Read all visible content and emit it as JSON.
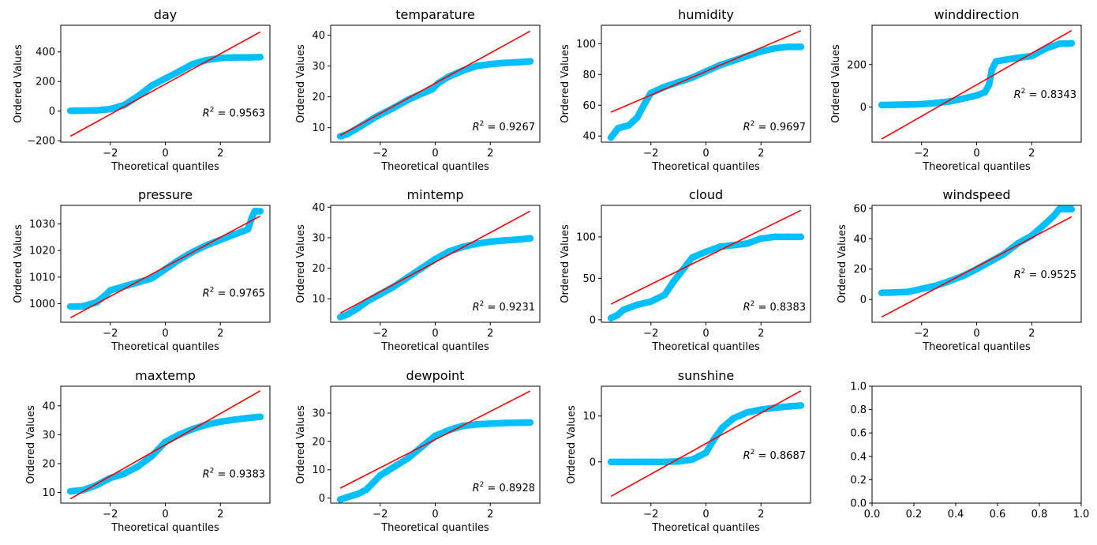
{
  "style": {
    "point_color": "#00bfff",
    "line_color": "#ff0000"
  },
  "chart_data": [
    {
      "type": "scatter",
      "title": "day",
      "xlabel": "Theoretical quantiles",
      "ylabel": "Ordered Values",
      "xlim": [
        -3.8,
        3.8
      ],
      "ylim": [
        -210,
        580
      ],
      "xticks": [
        -2,
        0,
        2
      ],
      "yticks": [
        -200,
        0,
        200,
        400
      ],
      "points": [
        [
          -3.45,
          2
        ],
        [
          -3,
          3
        ],
        [
          -2.5,
          5
        ],
        [
          -2,
          14
        ],
        [
          -1.5,
          40
        ],
        [
          -1,
          100
        ],
        [
          -0.5,
          172
        ],
        [
          0,
          220
        ],
        [
          0.5,
          268
        ],
        [
          1,
          318
        ],
        [
          1.5,
          345
        ],
        [
          2,
          358
        ],
        [
          2.5,
          363
        ],
        [
          3,
          363
        ],
        [
          3.45,
          365
        ]
      ],
      "fit_line": [
        [
          -3.45,
          -170
        ],
        [
          3.45,
          535
        ]
      ],
      "annotation": "0.9563"
    },
    {
      "type": "scatter",
      "title": "temparature",
      "xlabel": "Theoretical quantiles",
      "ylabel": "Ordered Values",
      "xlim": [
        -3.8,
        3.8
      ],
      "ylim": [
        5.3,
        43.2
      ],
      "xticks": [
        -2,
        0,
        2
      ],
      "yticks": [
        10,
        20,
        30,
        40
      ],
      "points": [
        [
          -3.45,
          7.2
        ],
        [
          -3.2,
          7.9
        ],
        [
          -2.7,
          10.5
        ],
        [
          -2.2,
          13.3
        ],
        [
          -1.5,
          16.5
        ],
        [
          -1,
          19
        ],
        [
          -0.5,
          21
        ],
        [
          -0.1,
          22.5
        ],
        [
          0.1,
          24.4
        ],
        [
          0.5,
          26.6
        ],
        [
          1,
          28.5
        ],
        [
          1.5,
          30
        ],
        [
          2,
          30.6
        ],
        [
          2.5,
          31
        ],
        [
          3,
          31.2
        ],
        [
          3.45,
          31.5
        ]
      ],
      "fit_line": [
        [
          -3.45,
          7.5
        ],
        [
          3.45,
          41.3
        ]
      ],
      "annotation": "0.9267"
    },
    {
      "type": "scatter",
      "title": "humidity",
      "xlabel": "Theoretical quantiles",
      "ylabel": "Ordered Values",
      "xlim": [
        -3.8,
        3.8
      ],
      "ylim": [
        36,
        112
      ],
      "xticks": [
        -2,
        0,
        2
      ],
      "yticks": [
        40,
        60,
        80,
        100
      ],
      "points": [
        [
          -3.45,
          39
        ],
        [
          -3.2,
          45
        ],
        [
          -2.8,
          47
        ],
        [
          -2.5,
          52
        ],
        [
          -2.2,
          62
        ],
        [
          -2,
          68
        ],
        [
          -1.5,
          72
        ],
        [
          -1,
          75
        ],
        [
          -0.5,
          78
        ],
        [
          0,
          82
        ],
        [
          0.5,
          86
        ],
        [
          1,
          89
        ],
        [
          1.5,
          92
        ],
        [
          2,
          95
        ],
        [
          2.5,
          97
        ],
        [
          3,
          98
        ],
        [
          3.45,
          98
        ]
      ],
      "fit_line": [
        [
          -3.45,
          55.5
        ],
        [
          3.45,
          108.5
        ]
      ],
      "annotation": "0.9697"
    },
    {
      "type": "scatter",
      "title": "winddirection",
      "xlabel": "Theoretical quantiles",
      "ylabel": "Ordered Values",
      "xlim": [
        -3.8,
        3.8
      ],
      "ylim": [
        -165,
        385
      ],
      "xticks": [
        -2,
        0,
        2
      ],
      "yticks": [
        0,
        200
      ],
      "points": [
        [
          -3.45,
          10
        ],
        [
          -3,
          11
        ],
        [
          -2.5,
          12
        ],
        [
          -2,
          14
        ],
        [
          -1.5,
          19
        ],
        [
          -1,
          26
        ],
        [
          -0.5,
          40
        ],
        [
          0,
          55
        ],
        [
          0.3,
          70
        ],
        [
          0.45,
          105
        ],
        [
          0.55,
          175
        ],
        [
          0.7,
          215
        ],
        [
          1,
          222
        ],
        [
          1.5,
          232
        ],
        [
          2,
          240
        ],
        [
          2.5,
          275
        ],
        [
          3,
          298
        ],
        [
          3.45,
          300
        ]
      ],
      "fit_line": [
        [
          -3.45,
          -150
        ],
        [
          3.45,
          360
        ]
      ],
      "annotation": "0.8343"
    },
    {
      "type": "scatter",
      "title": "pressure",
      "xlabel": "Theoretical quantiles",
      "ylabel": "Ordered Values",
      "xlim": [
        -3.8,
        3.8
      ],
      "ylim": [
        993,
        1037
      ],
      "xticks": [
        -2,
        0,
        2
      ],
      "yticks": [
        1000,
        1010,
        1020,
        1030
      ],
      "points": [
        [
          -3.45,
          998.9
        ],
        [
          -3,
          999
        ],
        [
          -2.5,
          1000.5
        ],
        [
          -2.2,
          1003
        ],
        [
          -2,
          1005
        ],
        [
          -1.5,
          1006.5
        ],
        [
          -1,
          1008
        ],
        [
          -0.5,
          1009.5
        ],
        [
          0,
          1013
        ],
        [
          0.5,
          1016.5
        ],
        [
          1,
          1019.5
        ],
        [
          1.5,
          1022
        ],
        [
          2,
          1024
        ],
        [
          2.5,
          1026
        ],
        [
          3,
          1028
        ],
        [
          3.15,
          1032.5
        ],
        [
          3.25,
          1034.8
        ],
        [
          3.45,
          1034.8
        ]
      ],
      "fit_line": [
        [
          -3.45,
          994.7
        ],
        [
          3.45,
          1033
        ]
      ],
      "annotation": "0.9765"
    },
    {
      "type": "scatter",
      "title": "mintemp",
      "xlabel": "Theoretical quantiles",
      "ylabel": "Ordered Values",
      "xlim": [
        -3.8,
        3.8
      ],
      "ylim": [
        2.3,
        40.6
      ],
      "xticks": [
        -2,
        0,
        2
      ],
      "yticks": [
        10,
        20,
        30,
        40
      ],
      "points": [
        [
          -3.45,
          4
        ],
        [
          -3.2,
          4.8
        ],
        [
          -2.8,
          7
        ],
        [
          -2.5,
          9
        ],
        [
          -2,
          11.5
        ],
        [
          -1.5,
          14
        ],
        [
          -1,
          17
        ],
        [
          -0.5,
          20
        ],
        [
          0,
          23
        ],
        [
          0.5,
          25.5
        ],
        [
          1,
          27
        ],
        [
          1.5,
          28
        ],
        [
          2,
          28.7
        ],
        [
          2.5,
          29.1
        ],
        [
          3,
          29.4
        ],
        [
          3.45,
          29.8
        ]
      ],
      "fit_line": [
        [
          -3.45,
          5.3
        ],
        [
          3.45,
          38.7
        ]
      ],
      "annotation": "0.9231"
    },
    {
      "type": "scatter",
      "title": "cloud",
      "xlabel": "Theoretical quantiles",
      "ylabel": "Ordered Values",
      "xlim": [
        -3.8,
        3.8
      ],
      "ylim": [
        -3,
        138
      ],
      "xticks": [
        -2,
        0,
        2
      ],
      "yticks": [
        0,
        50,
        100
      ],
      "points": [
        [
          -3.45,
          2
        ],
        [
          -3.2,
          6
        ],
        [
          -3,
          12
        ],
        [
          -2.5,
          18
        ],
        [
          -2,
          22
        ],
        [
          -1.5,
          30
        ],
        [
          -1.2,
          45
        ],
        [
          -0.8,
          62
        ],
        [
          -0.5,
          75
        ],
        [
          0,
          82
        ],
        [
          0.5,
          88
        ],
        [
          1,
          90
        ],
        [
          1.5,
          92
        ],
        [
          2,
          98
        ],
        [
          2.5,
          100
        ],
        [
          3,
          100
        ],
        [
          3.45,
          100
        ]
      ],
      "fit_line": [
        [
          -3.45,
          19
        ],
        [
          3.45,
          132
        ]
      ],
      "annotation": "0.8383"
    },
    {
      "type": "scatter",
      "title": "windspeed",
      "xlabel": "Theoretical quantiles",
      "ylabel": "Ordered Values",
      "xlim": [
        -3.8,
        3.8
      ],
      "ylim": [
        -15,
        62
      ],
      "xticks": [
        -2,
        0,
        2
      ],
      "yticks": [
        0,
        20,
        40,
        60
      ],
      "points": [
        [
          -3.45,
          4.4
        ],
        [
          -3,
          4.6
        ],
        [
          -2.5,
          5
        ],
        [
          -2,
          7
        ],
        [
          -1.5,
          9
        ],
        [
          -1,
          12
        ],
        [
          -0.5,
          15.5
        ],
        [
          0,
          20
        ],
        [
          0.5,
          25
        ],
        [
          1,
          30
        ],
        [
          1.5,
          37
        ],
        [
          2,
          42
        ],
        [
          2.5,
          50
        ],
        [
          2.8,
          55
        ],
        [
          3,
          59.5
        ],
        [
          3.45,
          59.5
        ]
      ],
      "fit_line": [
        [
          -3.45,
          -11.5
        ],
        [
          3.45,
          54.5
        ]
      ],
      "annotation": "0.9525"
    },
    {
      "type": "scatter",
      "title": "maxtemp",
      "xlabel": "Theoretical quantiles",
      "ylabel": "Ordered Values",
      "xlim": [
        -3.8,
        3.8
      ],
      "ylim": [
        6.3,
        46.8
      ],
      "xticks": [
        -2,
        0,
        2
      ],
      "yticks": [
        10,
        20,
        30,
        40
      ],
      "points": [
        [
          -3.45,
          10.4
        ],
        [
          -3,
          10.8
        ],
        [
          -2.5,
          12.5
        ],
        [
          -2,
          15
        ],
        [
          -1.5,
          16.5
        ],
        [
          -1,
          19
        ],
        [
          -0.5,
          22.5
        ],
        [
          0,
          27.5
        ],
        [
          0.5,
          30
        ],
        [
          1,
          32
        ],
        [
          1.5,
          33.5
        ],
        [
          2,
          34.5
        ],
        [
          2.5,
          35.2
        ],
        [
          3,
          35.8
        ],
        [
          3.45,
          36.2
        ]
      ],
      "fit_line": [
        [
          -3.45,
          7.8
        ],
        [
          3.45,
          45.2
        ]
      ],
      "annotation": "0.9383"
    },
    {
      "type": "scatter",
      "title": "dewpoint",
      "xlabel": "Theoretical quantiles",
      "ylabel": "Ordered Values",
      "xlim": [
        -3.8,
        3.8
      ],
      "ylim": [
        -1.8,
        39.5
      ],
      "xticks": [
        -2,
        0,
        2
      ],
      "yticks": [
        0,
        10,
        20,
        30
      ],
      "points": [
        [
          -3.45,
          -0.5
        ],
        [
          -3.2,
          0.3
        ],
        [
          -2.8,
          1.5
        ],
        [
          -2.5,
          3
        ],
        [
          -2,
          8
        ],
        [
          -1.5,
          11
        ],
        [
          -1,
          14
        ],
        [
          -0.5,
          18
        ],
        [
          0,
          22
        ],
        [
          0.5,
          24
        ],
        [
          1,
          25.5
        ],
        [
          1.5,
          26
        ],
        [
          2,
          26.3
        ],
        [
          2.5,
          26.5
        ],
        [
          3,
          26.6
        ],
        [
          3.45,
          26.7
        ]
      ],
      "fit_line": [
        [
          -3.45,
          3.5
        ],
        [
          3.45,
          37.8
        ]
      ],
      "annotation": "0.8928"
    },
    {
      "type": "scatter",
      "title": "sunshine",
      "xlabel": "Theoretical quantiles",
      "ylabel": "Ordered Values",
      "xlim": [
        -3.8,
        3.8
      ],
      "ylim": [
        -9,
        16.5
      ],
      "xticks": [
        -2,
        0,
        2
      ],
      "yticks": [
        0,
        10
      ],
      "points": [
        [
          -3.45,
          0
        ],
        [
          -3,
          0
        ],
        [
          -2.5,
          0
        ],
        [
          -2,
          0
        ],
        [
          -1.5,
          0
        ],
        [
          -1,
          0.1
        ],
        [
          -0.5,
          0.5
        ],
        [
          0,
          2
        ],
        [
          0.3,
          5
        ],
        [
          0.6,
          7.5
        ],
        [
          1,
          9.5
        ],
        [
          1.5,
          10.8
        ],
        [
          2,
          11.4
        ],
        [
          2.5,
          11.8
        ],
        [
          3,
          12.1
        ],
        [
          3.45,
          12.3
        ]
      ],
      "fit_line": [
        [
          -3.45,
          -7.5
        ],
        [
          3.45,
          15.5
        ]
      ],
      "annotation": "0.8687"
    },
    {
      "type": "scatter",
      "title": "",
      "xlabel": "",
      "ylabel": "",
      "xlim": [
        0,
        1
      ],
      "ylim": [
        0,
        1
      ],
      "xticks": [
        0.0,
        0.2,
        0.4,
        0.6,
        0.8,
        1.0
      ],
      "yticks": [
        0.0,
        0.2,
        0.4,
        0.6,
        0.8,
        1.0
      ],
      "tick_labels_x": [
        "0.0",
        "0.2",
        "0.4",
        "0.6",
        "0.8",
        "1.0"
      ],
      "tick_labels_y": [
        "0.0",
        "0.2",
        "0.4",
        "0.6",
        "0.8",
        "1.0"
      ],
      "points": [],
      "fit_line": [],
      "annotation": ""
    }
  ]
}
